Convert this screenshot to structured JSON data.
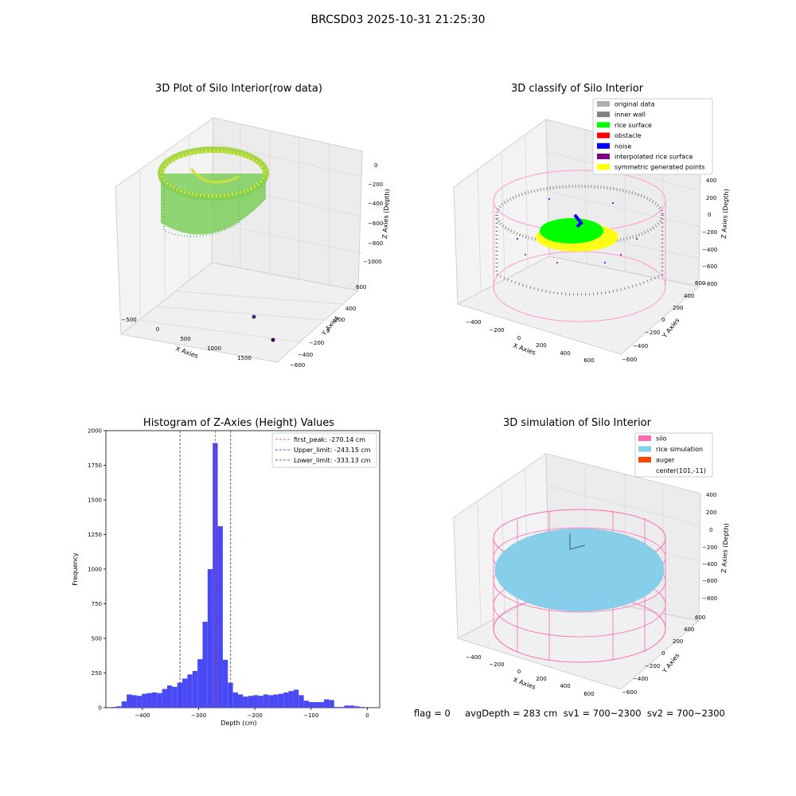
{
  "figure_title": "BRCSD03 2025-10-31 21:25:30",
  "status_line": "flag = 0     avgDepth = 283 cm  sv1 = 700~2300  sv2 = 700~2300",
  "colors": {
    "hist_bar": "#4a4af5",
    "peak_line": "#e03a3a",
    "limit_line": "#2a2ad6",
    "silo": "#ff69b4",
    "rice_simulation": "#87ceeb",
    "auger": "#ff4500",
    "rice_surface": "#00ff00",
    "noise": "#0000ff",
    "inner_wall": "#808080",
    "original_data": "#b0b0b0",
    "obstacle": "#ff0000",
    "interpolated_rice_surface": "#800080",
    "symmetric_generated_points": "#ffff00"
  },
  "chart_data": [
    {
      "type": "scatter",
      "subtype": "3d",
      "title": "3D Plot of Silo Interior(row data)",
      "xlabel": "X Axies",
      "ylabel": "Y Axies",
      "zlabel": "Z Axies (Depth)",
      "xticks": [
        "−500",
        "0",
        "500",
        "1000",
        "1500"
      ],
      "yticks": [
        "600",
        "400",
        "200",
        "0",
        "−200",
        "−400",
        "−600"
      ],
      "zticks": [
        "0",
        "−200",
        "−400",
        "−600",
        "−800",
        "−1000"
      ],
      "xlim": [
        -600,
        1700
      ],
      "ylim": [
        -650,
        650
      ],
      "zlim": [
        -1050,
        50
      ],
      "colormap": "viridis",
      "grid": true
    },
    {
      "type": "scatter",
      "subtype": "3d",
      "title": "3D classify of Silo Interior",
      "xlabel": "X Axies",
      "ylabel": "Y Axies",
      "zlabel": "Z Axies (Depth)",
      "xticks": [
        "−400",
        "−200",
        "0",
        "200",
        "400",
        "600"
      ],
      "yticks": [
        "600",
        "400",
        "200",
        "0",
        "−200",
        "−400",
        "−600"
      ],
      "zticks": [
        "400",
        "200",
        "0",
        "−200",
        "−400",
        "−600",
        "−800"
      ],
      "legend_position": "top-right",
      "legend": [
        {
          "label": "original data",
          "color": "#b0b0b0"
        },
        {
          "label": "inner wall",
          "color": "#808080"
        },
        {
          "label": "rice surface",
          "color": "#00ff00"
        },
        {
          "label": "obstacle",
          "color": "#ff0000"
        },
        {
          "label": "noise",
          "color": "#0000ff"
        },
        {
          "label": "interpolated rice surface",
          "color": "#800080"
        },
        {
          "label": "symmetric generated points",
          "color": "#ffff00"
        }
      ],
      "grid": true
    },
    {
      "type": "bar",
      "subtype": "histogram",
      "title": "Histogram of Z-Axies (Height) Values",
      "xlabel": "Depth (cm)",
      "ylabel": "Frequency",
      "xlim": [
        -465,
        22
      ],
      "ylim": [
        0,
        2000
      ],
      "xticks": [
        -400,
        -300,
        -200,
        -100,
        0
      ],
      "xtick_labels": [
        "−400",
        "−300",
        "−200",
        "−100",
        "0"
      ],
      "yticks": [
        0,
        250,
        500,
        750,
        1000,
        1250,
        1500,
        1750,
        2000
      ],
      "bin_width": 9,
      "bin_start": -455,
      "values": [
        5,
        10,
        45,
        95,
        90,
        85,
        100,
        105,
        110,
        105,
        135,
        160,
        150,
        180,
        210,
        240,
        265,
        350,
        620,
        1000,
        1910,
        1310,
        345,
        180,
        110,
        95,
        80,
        85,
        90,
        85,
        95,
        90,
        95,
        100,
        110,
        120,
        130,
        90,
        50,
        40,
        40,
        40,
        60,
        55,
        5,
        5,
        15,
        15,
        10,
        5
      ],
      "reference_lines": [
        {
          "label": "first_peak: -270.14 cm",
          "x": -270.14,
          "color": "#e03a3a"
        },
        {
          "label": "Upper_limit: -243.15 cm",
          "x": -243.15,
          "color": "#2a2ad6"
        },
        {
          "label": "Lower_limit: -333.13 cm",
          "x": -333.13,
          "color": "#2a2ad6"
        }
      ],
      "legend_position": "top-right"
    },
    {
      "type": "scatter",
      "subtype": "3d-surface",
      "title": "3D simulation of Silo Interior",
      "xlabel": "X Axies",
      "ylabel": "Y Axies",
      "zlabel": "Z Axies (Depth)",
      "xticks": [
        "−400",
        "−200",
        "0",
        "200",
        "400",
        "600"
      ],
      "yticks": [
        "600",
        "400",
        "200",
        "0",
        "−200",
        "−400",
        "−600"
      ],
      "zticks": [
        "400",
        "200",
        "0",
        "−200",
        "−400",
        "−600",
        "−800"
      ],
      "legend_position": "top-right",
      "legend": [
        {
          "label": "silo",
          "color": "#ff69b4"
        },
        {
          "label": "rice simulation",
          "color": "#87ceeb"
        },
        {
          "label": "auger",
          "color": "#ff4500"
        },
        {
          "label": "center(101,-11)",
          "color": ""
        }
      ],
      "grid": true
    }
  ]
}
